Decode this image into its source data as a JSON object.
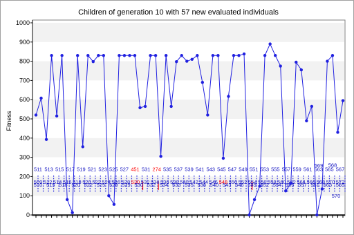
{
  "chart_data": {
    "type": "line",
    "title": "Children of generation 10 with 57 new evaluated individuals",
    "ylabel": "Fitness",
    "xlabel": "",
    "ylim": [
      0,
      1000
    ],
    "yticks": [
      0,
      100,
      200,
      300,
      400,
      500,
      600,
      700,
      800,
      900,
      1000
    ],
    "grid": "horizontal bands",
    "series_color": "#2020e0",
    "highlight_color": "#ff0000",
    "label_color": "#1010c0",
    "series": [
      {
        "values": [
          520,
          608,
          393,
          830,
          515,
          830,
          80,
          12,
          830,
          355,
          830,
          798,
          830,
          830,
          100,
          55,
          830,
          830,
          830,
          830,
          558,
          565,
          830,
          830,
          305,
          830,
          565,
          798,
          830,
          800,
          810,
          830,
          690,
          520,
          830,
          830,
          295,
          617,
          830,
          830,
          838,
          0,
          80,
          150,
          830,
          890,
          830,
          775,
          125,
          165,
          795,
          755,
          490,
          565,
          0,
          135,
          800,
          830,
          430,
          595
        ]
      }
    ],
    "annotations": {
      "rows": [
        {
          "labels": [
            "511",
            "513",
            "515",
            "517",
            "519",
            "521",
            "523",
            "525",
            "527",
            "451",
            "531",
            "274",
            "535",
            "537",
            "539",
            "541",
            "543",
            "545",
            "547",
            "549",
            "551",
            "553",
            "555",
            "557",
            "559",
            "561",
            "563",
            "565",
            "567"
          ],
          "red": [
            "451",
            "274"
          ]
        },
        {
          "labels": [
            "509",
            "512",
            "514",
            "516",
            "518",
            "520",
            "522",
            "524",
            "526",
            "528",
            "530",
            "532",
            "534",
            "536",
            "538",
            "540",
            "542",
            "544",
            "546",
            "548",
            "550",
            "552",
            "554",
            "556",
            "558",
            "560",
            "562",
            "564",
            "566",
            "568",
            "570",
            "572"
          ],
          "red": [
            "530",
            "548"
          ]
        },
        {
          "labels": [
            "510",
            "515",
            "518",
            "520",
            "522",
            "525",
            "528",
            "529",
            "530",
            "532",
            "534",
            "533",
            "535",
            "538",
            "540",
            "543",
            "546",
            "549",
            "552",
            "554",
            "555",
            "557",
            "561",
            "563",
            "565"
          ],
          "red": []
        },
        {
          "labels": [
            "569",
            "568",
            "570"
          ],
          "red": []
        }
      ]
    }
  }
}
